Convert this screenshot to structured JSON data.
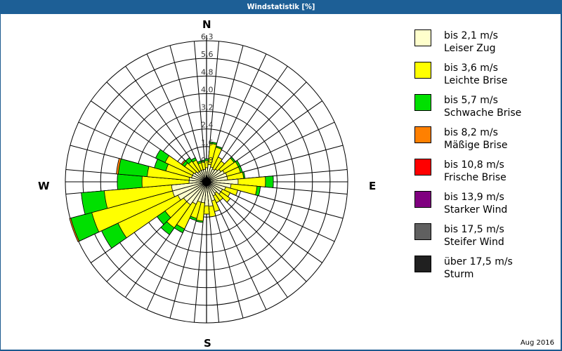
{
  "window": {
    "title": "Windstatistik [%]",
    "footer_date": "Aug 2016"
  },
  "compass": {
    "n": "N",
    "e": "E",
    "s": "S",
    "w": "W"
  },
  "legend": [
    {
      "range": "bis 2,1 m/s",
      "label": "Leiser Zug",
      "color": "#ffffcc"
    },
    {
      "range": "bis 3,6 m/s",
      "label": "Leichte Brise",
      "color": "#ffff00"
    },
    {
      "range": "bis 5,7 m/s",
      "label": "Schwache Brise",
      "color": "#00e000"
    },
    {
      "range": "bis 8,2 m/s",
      "label": "Mäßige Brise",
      "color": "#ff8000"
    },
    {
      "range": "bis 10,8 m/s",
      "label": "Frische Brise",
      "color": "#ff0000"
    },
    {
      "range": "bis 13,9 m/s",
      "label": "Starker Wind",
      "color": "#800080"
    },
    {
      "range": "bis 17,5 m/s",
      "label": "Steifer Wind",
      "color": "#606060"
    },
    {
      "range": "über 17,5 m/s",
      "label": "Sturm",
      "color": "#202020"
    }
  ],
  "chart_data": {
    "type": "wind-rose",
    "title": "Windstatistik [%]",
    "subtitle": "Aug 2016",
    "radial_unit": "%",
    "radial_ticks": [
      "0,8",
      "1,6",
      "2,4",
      "3,2",
      "4,0",
      "4,8",
      "5,6",
      "6,3"
    ],
    "rmax": 6.3,
    "sector_width_deg": 10,
    "grid": true,
    "legend_position": "right",
    "series_names": [
      "bis 2,1 m/s",
      "bis 3,6 m/s",
      "bis 5,7 m/s",
      "bis 8,2 m/s",
      "bis 10,8 m/s",
      "bis 13,9 m/s",
      "bis 17,5 m/s",
      "über 17,5 m/s"
    ],
    "note": "cumulative percentage per direction, per speed class (0=N, clockwise)",
    "directions": [
      0,
      10,
      20,
      30,
      40,
      50,
      60,
      70,
      80,
      90,
      100,
      110,
      120,
      130,
      140,
      150,
      160,
      170,
      180,
      190,
      200,
      210,
      220,
      230,
      240,
      250,
      260,
      270,
      280,
      290,
      300,
      310,
      320,
      330,
      340,
      350
    ],
    "cumulative": [
      [
        0.63,
        0.94,
        1.03,
        1.03
      ],
      [
        0.78,
        1.72,
        1.79,
        1.79
      ],
      [
        0.69,
        1.6,
        1.66,
        1.66
      ],
      [
        0.63,
        1.22,
        1.22,
        1.22
      ],
      [
        0.69,
        1.13,
        1.13,
        1.13
      ],
      [
        0.78,
        1.5,
        1.57,
        1.57
      ],
      [
        0.88,
        1.57,
        1.66,
        1.66
      ],
      [
        0.94,
        1.57,
        1.66,
        1.66
      ],
      [
        0.94,
        1.66,
        1.72,
        1.72
      ],
      [
        1.41,
        2.63,
        2.98,
        2.98
      ],
      [
        1.1,
        2.26,
        2.41,
        2.41
      ],
      [
        0.88,
        1.44,
        1.44,
        1.44
      ],
      [
        0.78,
        1.16,
        1.16,
        1.16
      ],
      [
        0.78,
        1.29,
        1.29,
        1.29
      ],
      [
        0.63,
        1.03,
        1.03,
        1.03
      ],
      [
        0.69,
        1.03,
        1.03,
        1.03
      ],
      [
        0.88,
        1.38,
        1.38,
        1.38
      ],
      [
        1.1,
        1.57,
        1.57,
        1.57
      ],
      [
        1.07,
        1.44,
        1.44,
        1.44
      ],
      [
        0.94,
        1.76,
        1.82,
        1.82
      ],
      [
        0.94,
        1.69,
        1.79,
        1.79
      ],
      [
        1.1,
        2.32,
        2.51,
        2.51
      ],
      [
        1.25,
        2.51,
        2.88,
        2.88
      ],
      [
        1.25,
        2.26,
        2.7,
        2.7
      ],
      [
        1.41,
        4.36,
        5.17,
        5.17
      ],
      [
        1.57,
        5.3,
        6.27,
        6.33
      ],
      [
        1.57,
        4.58,
        5.61,
        5.61
      ],
      [
        0.78,
        2.88,
        3.98,
        3.98
      ],
      [
        0.78,
        2.66,
        3.95,
        4.04
      ],
      [
        0.69,
        1.88,
        2.41,
        2.41
      ],
      [
        0.69,
        2.04,
        2.51,
        2.51
      ],
      [
        0.63,
        1.19,
        1.32,
        1.38
      ],
      [
        0.56,
        1.13,
        1.32,
        1.32
      ],
      [
        0.56,
        1.07,
        1.19,
        1.19
      ],
      [
        0.56,
        0.88,
        0.97,
        0.97
      ],
      [
        0.56,
        0.91,
        0.97,
        0.97
      ]
    ]
  }
}
